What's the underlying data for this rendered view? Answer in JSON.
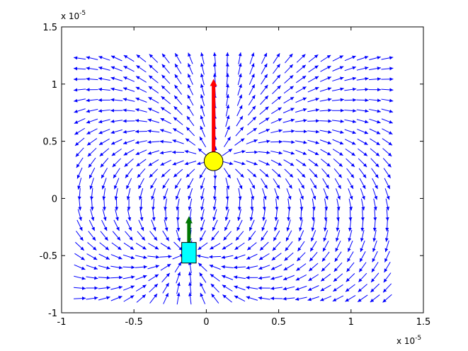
{
  "chart_data": {
    "type": "quiver",
    "title": "",
    "xlabel": "",
    "ylabel": "",
    "x_scale_label": "x 10",
    "x_scale_exponent": "-5",
    "y_scale_label": "x 10",
    "y_scale_exponent": "-5",
    "xlim": [
      -1,
      1.5
    ],
    "ylim": [
      -1,
      1.5
    ],
    "xticks": [
      -1,
      -0.5,
      0,
      0.5,
      1,
      1.5
    ],
    "yticks": [
      -1,
      -0.5,
      0,
      0.5,
      1,
      1.5
    ],
    "xtick_labels": [
      "-1",
      "-0.5",
      "0",
      "0.5",
      "1",
      "1.5"
    ],
    "ytick_labels": [
      "-1",
      "-0.5",
      "0",
      "0.5",
      "1",
      "1.5"
    ],
    "grid": false,
    "field": {
      "x_range": [
        -0.875,
        1.25
      ],
      "y_range": [
        -0.875,
        1.225
      ],
      "nx": 26,
      "ny": 24,
      "source": [
        0.05,
        0.325
      ],
      "sink": [
        -0.125,
        -0.475
      ],
      "color": "#0000ff"
    },
    "objects": [
      {
        "name": "yellow circle",
        "shape": "circle",
        "x": 0.05,
        "y": 0.325,
        "r": 0.065,
        "color": "#ffff00",
        "arrow": {
          "dx": 0,
          "dy": 0.72,
          "color": "#ff0000"
        }
      },
      {
        "name": "cyan square",
        "shape": "square",
        "x": -0.12,
        "y": -0.475,
        "w": 0.1,
        "h": 0.18,
        "color": "#00ffff",
        "arrow": {
          "dx": 0,
          "dy": 0.32,
          "color": "#007700"
        }
      }
    ]
  }
}
